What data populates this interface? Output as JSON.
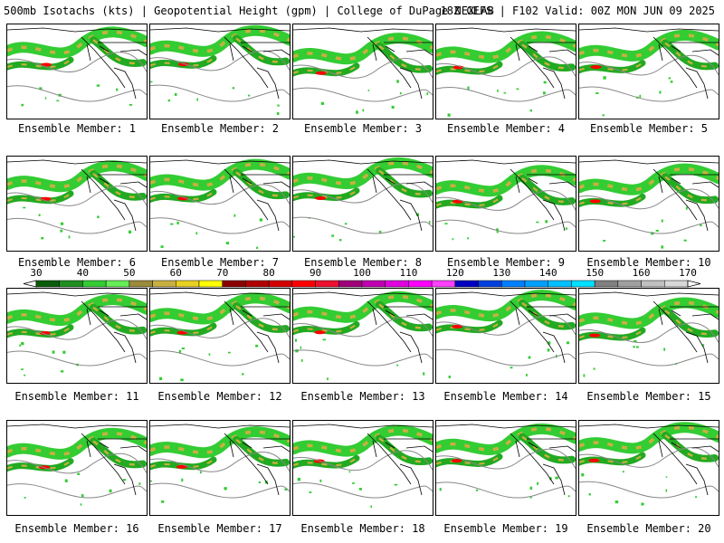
{
  "header": {
    "title_left": "500mb Isotachs (kts) | Geopotential Height (gpm) | College of DuPage NEXLAB",
    "title_right": "18Z GEFS | F102 Valid: 00Z MON JUN 09 2025"
  },
  "members": [
    {
      "label": "Ensemble Member: 1"
    },
    {
      "label": "Ensemble Member: 2"
    },
    {
      "label": "Ensemble Member: 3"
    },
    {
      "label": "Ensemble Member: 4"
    },
    {
      "label": "Ensemble Member: 5"
    },
    {
      "label": "Ensemble Member: 6"
    },
    {
      "label": "Ensemble Member: 7"
    },
    {
      "label": "Ensemble Member: 8"
    },
    {
      "label": "Ensemble Member: 9"
    },
    {
      "label": "Ensemble Member: 10"
    },
    {
      "label": "Ensemble Member: 11"
    },
    {
      "label": "Ensemble Member: 12"
    },
    {
      "label": "Ensemble Member: 13"
    },
    {
      "label": "Ensemble Member: 14"
    },
    {
      "label": "Ensemble Member: 15"
    },
    {
      "label": "Ensemble Member: 16"
    },
    {
      "label": "Ensemble Member: 17"
    },
    {
      "label": "Ensemble Member: 18"
    },
    {
      "label": "Ensemble Member: 19"
    },
    {
      "label": "Ensemble Member: 20"
    }
  ],
  "colorbar": {
    "labels": [
      "30",
      "40",
      "50",
      "60",
      "70",
      "80",
      "90",
      "100",
      "110",
      "120",
      "130",
      "140",
      "150",
      "160",
      "170"
    ],
    "colors": [
      "#0a5c0a",
      "#1f8f1f",
      "#33cc33",
      "#66ee55",
      "#9a8a3a",
      "#c8b040",
      "#e8d020",
      "#ffff00",
      "#8b0000",
      "#b00000",
      "#d40000",
      "#ff0000",
      "#ee1030",
      "#a0007a",
      "#c000b0",
      "#e000e0",
      "#ff00ff",
      "#ff40ff",
      "#0000c0",
      "#0040e0",
      "#0080ff",
      "#00a0ff",
      "#00c0ff",
      "#00e0ff",
      "#808080",
      "#a0a0a0",
      "#c0c0c0",
      "#d8d8d8"
    ]
  },
  "colors": {
    "jet_low": "#22aa22",
    "jet_mid": "#33cc33",
    "jet_core": "#c8b040",
    "jet_max": "#ff0000",
    "height_contour": "#888888",
    "boundaries": "#000000"
  }
}
